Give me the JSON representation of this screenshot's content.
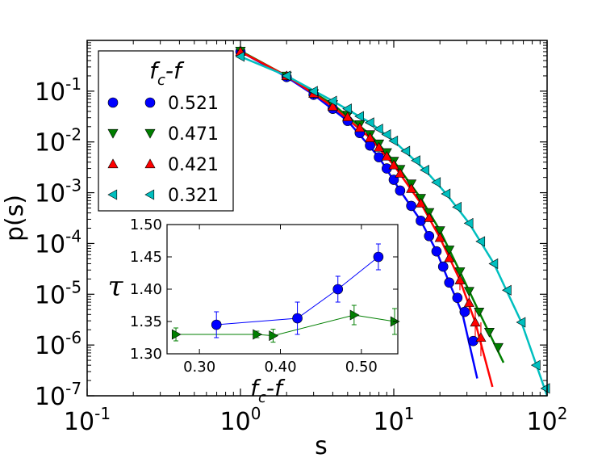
{
  "chart_data": [
    {
      "type": "scatter",
      "role": "main",
      "xlabel": "s",
      "ylabel": "p(s)",
      "xscale": "log",
      "yscale": "log",
      "xlim": [
        0.1,
        100
      ],
      "ylim": [
        1e-07,
        1
      ],
      "x_ticks": [
        {
          "value": 0.1,
          "base": "10",
          "exp": "-1"
        },
        {
          "value": 1,
          "base": "10",
          "exp": "0"
        },
        {
          "value": 10,
          "base": "10",
          "exp": "1"
        },
        {
          "value": 100,
          "base": "10",
          "exp": "2"
        }
      ],
      "y_ticks": [
        {
          "value": 1e-07,
          "base": "10",
          "exp": "-7"
        },
        {
          "value": 1e-06,
          "base": "10",
          "exp": "-6"
        },
        {
          "value": 1e-05,
          "base": "10",
          "exp": "-5"
        },
        {
          "value": 0.0001,
          "base": "10",
          "exp": "-4"
        },
        {
          "value": 0.001,
          "base": "10",
          "exp": "-3"
        },
        {
          "value": 0.01,
          "base": "10",
          "exp": "-2"
        },
        {
          "value": 0.1,
          "base": "10",
          "exp": "-1"
        }
      ],
      "legend": {
        "title_main": "f",
        "title_sub": "c",
        "title_rest": "-f",
        "placement": "top-left"
      },
      "series": [
        {
          "name": "0.521",
          "marker": "circle",
          "color": "#0000ff",
          "points": [
            {
              "s": 1,
              "p": 0.6
            },
            {
              "s": 2,
              "p": 0.19
            },
            {
              "s": 3,
              "p": 0.085
            },
            {
              "s": 4,
              "p": 0.045
            },
            {
              "s": 5,
              "p": 0.026
            },
            {
              "s": 6,
              "p": 0.015
            },
            {
              "s": 7,
              "p": 0.0085
            },
            {
              "s": 8,
              "p": 0.005
            },
            {
              "s": 9,
              "p": 0.003
            },
            {
              "s": 10,
              "p": 0.0018
            },
            {
              "s": 11,
              "p": 0.0011
            },
            {
              "s": 13,
              "p": 0.00055
            },
            {
              "s": 15,
              "p": 0.00028
            },
            {
              "s": 17,
              "p": 0.00014
            },
            {
              "s": 19,
              "p": 7e-05
            },
            {
              "s": 21,
              "p": 3.5e-05
            },
            {
              "s": 23,
              "p": 1.7e-05
            },
            {
              "s": 26,
              "p": 8.5e-06
            },
            {
              "s": 29,
              "p": 4.5e-06
            },
            {
              "s": 33,
              "p": 1.2e-06
            }
          ],
          "fit": [
            {
              "s": 1,
              "p": 0.6
            },
            {
              "s": 2,
              "p": 0.19
            },
            {
              "s": 3,
              "p": 0.085
            },
            {
              "s": 5,
              "p": 0.026
            },
            {
              "s": 8,
              "p": 0.005
            },
            {
              "s": 11,
              "p": 0.0011
            },
            {
              "s": 15,
              "p": 0.00028
            },
            {
              "s": 19,
              "p": 7e-05
            },
            {
              "s": 23,
              "p": 1.7e-05
            },
            {
              "s": 28,
              "p": 4.2e-06
            },
            {
              "s": 35,
              "p": 2.2e-07
            }
          ]
        },
        {
          "name": "0.471",
          "marker": "triangle-down",
          "color": "#007f00",
          "points": [
            {
              "s": 1,
              "p": 0.62
            },
            {
              "s": 2,
              "p": 0.2
            },
            {
              "s": 3,
              "p": 0.09
            },
            {
              "s": 4,
              "p": 0.055
            },
            {
              "s": 5,
              "p": 0.034
            },
            {
              "s": 6,
              "p": 0.022
            },
            {
              "s": 7,
              "p": 0.014
            },
            {
              "s": 8,
              "p": 0.0092
            },
            {
              "s": 9,
              "p": 0.0062
            },
            {
              "s": 10,
              "p": 0.0042
            },
            {
              "s": 11,
              "p": 0.0029
            },
            {
              "s": 13,
              "p": 0.0015
            },
            {
              "s": 15,
              "p": 0.00078
            },
            {
              "s": 17,
              "p": 0.00041
            },
            {
              "s": 20,
              "p": 0.00018
            },
            {
              "s": 23,
              "p": 7.5e-05
            },
            {
              "s": 27,
              "p": 2.8e-05
            },
            {
              "s": 31,
              "p": 1.15e-05
            },
            {
              "s": 36,
              "p": 4.5e-06
            },
            {
              "s": 42,
              "p": 1.8e-06
            },
            {
              "s": 48,
              "p": 9e-07
            }
          ],
          "fit": [
            {
              "s": 1,
              "p": 0.62
            },
            {
              "s": 2,
              "p": 0.2
            },
            {
              "s": 4,
              "p": 0.055
            },
            {
              "s": 7,
              "p": 0.014
            },
            {
              "s": 10,
              "p": 0.0042
            },
            {
              "s": 15,
              "p": 0.00078
            },
            {
              "s": 20,
              "p": 0.00018
            },
            {
              "s": 27,
              "p": 2.8e-05
            },
            {
              "s": 36,
              "p": 4.5e-06
            },
            {
              "s": 52,
              "p": 4.5e-07
            }
          ]
        },
        {
          "name": "0.421",
          "marker": "triangle-up",
          "color": "#ff0000",
          "points": [
            {
              "s": 1,
              "p": 0.6
            },
            {
              "s": 2,
              "p": 0.2
            },
            {
              "s": 3,
              "p": 0.09
            },
            {
              "s": 4,
              "p": 0.05
            },
            {
              "s": 5,
              "p": 0.031
            },
            {
              "s": 6,
              "p": 0.019
            },
            {
              "s": 7,
              "p": 0.012
            },
            {
              "s": 8,
              "p": 0.0078
            },
            {
              "s": 9,
              "p": 0.0052
            },
            {
              "s": 10,
              "p": 0.0035
            },
            {
              "s": 11,
              "p": 0.0024
            },
            {
              "s": 13,
              "p": 0.0012
            },
            {
              "s": 15,
              "p": 0.00062
            },
            {
              "s": 17,
              "p": 0.00032
            },
            {
              "s": 20,
              "p": 0.00013
            },
            {
              "s": 23,
              "p": 5.2e-05
            },
            {
              "s": 27,
              "p": 1.9e-05
            },
            {
              "s": 31,
              "p": 6.8e-06
            },
            {
              "s": 34,
              "p": 2.8e-06
            },
            {
              "s": 37,
              "p": 1.4e-06
            }
          ],
          "errorbars": [
            {
              "s": 27,
              "lo": 1.2e-05,
              "hi": 2.8e-05
            },
            {
              "s": 31,
              "lo": 4e-06,
              "hi": 1.1e-05
            },
            {
              "s": 34,
              "lo": 1.3e-06,
              "hi": 5.5e-06
            },
            {
              "s": 37,
              "lo": 6e-07,
              "hi": 2.8e-06
            }
          ],
          "fit": [
            {
              "s": 1,
              "p": 0.6
            },
            {
              "s": 2,
              "p": 0.2
            },
            {
              "s": 4,
              "p": 0.05
            },
            {
              "s": 7,
              "p": 0.012
            },
            {
              "s": 10,
              "p": 0.0035
            },
            {
              "s": 15,
              "p": 0.00062
            },
            {
              "s": 20,
              "p": 0.00013
            },
            {
              "s": 27,
              "p": 1.9e-05
            },
            {
              "s": 34,
              "p": 2.8e-06
            },
            {
              "s": 44,
              "p": 1.5e-07
            }
          ]
        },
        {
          "name": "0.321",
          "marker": "triangle-left",
          "color": "#00bfbf",
          "points": [
            {
              "s": 1,
              "p": 0.48
            },
            {
              "s": 2,
              "p": 0.2
            },
            {
              "s": 3,
              "p": 0.1
            },
            {
              "s": 4,
              "p": 0.064
            },
            {
              "s": 5,
              "p": 0.045
            },
            {
              "s": 6,
              "p": 0.032
            },
            {
              "s": 7,
              "p": 0.024
            },
            {
              "s": 8,
              "p": 0.018
            },
            {
              "s": 9,
              "p": 0.014
            },
            {
              "s": 10,
              "p": 0.0105
            },
            {
              "s": 12,
              "p": 0.0066
            },
            {
              "s": 14,
              "p": 0.0043
            },
            {
              "s": 16,
              "p": 0.0028
            },
            {
              "s": 19,
              "p": 0.0016
            },
            {
              "s": 22,
              "p": 0.00095
            },
            {
              "s": 26,
              "p": 0.00052
            },
            {
              "s": 31,
              "p": 0.00025
            },
            {
              "s": 37,
              "p": 0.00011
            },
            {
              "s": 45,
              "p": 4e-05
            },
            {
              "s": 55,
              "p": 1.2e-05
            },
            {
              "s": 68,
              "p": 2.8e-06
            },
            {
              "s": 85,
              "p": 4e-07
            },
            {
              "s": 98,
              "p": 1.4e-07
            }
          ],
          "fit": [
            {
              "s": 1,
              "p": 0.48
            },
            {
              "s": 2,
              "p": 0.2
            },
            {
              "s": 4,
              "p": 0.064
            },
            {
              "s": 7,
              "p": 0.024
            },
            {
              "s": 10,
              "p": 0.0105
            },
            {
              "s": 16,
              "p": 0.0028
            },
            {
              "s": 22,
              "p": 0.00095
            },
            {
              "s": 31,
              "p": 0.00025
            },
            {
              "s": 45,
              "p": 4e-05
            },
            {
              "s": 68,
              "p": 2.8e-06
            },
            {
              "s": 100,
              "p": 1e-07
            }
          ]
        }
      ]
    },
    {
      "type": "line",
      "role": "inset",
      "xlabel_main": "f",
      "xlabel_sub": "c",
      "xlabel_rest": "-f",
      "ylabel": "τ",
      "xlim": [
        0.26,
        0.545
      ],
      "ylim": [
        1.3,
        1.5
      ],
      "x_ticks": [
        "0.30",
        "0.40",
        "0.50"
      ],
      "x_tick_values": [
        0.3,
        0.4,
        0.5
      ],
      "y_ticks": [
        "1.30",
        "1.35",
        "1.40",
        "1.45",
        "1.50"
      ],
      "y_tick_values": [
        1.3,
        1.35,
        1.4,
        1.45,
        1.5
      ],
      "series": [
        {
          "name": "blue",
          "marker": "circle",
          "color": "#0000ff",
          "points": [
            {
              "x": 0.321,
              "y": 1.345,
              "err": 0.02
            },
            {
              "x": 0.421,
              "y": 1.355,
              "err": 0.025
            },
            {
              "x": 0.471,
              "y": 1.4,
              "err": 0.02
            },
            {
              "x": 0.521,
              "y": 1.45,
              "err": 0.02
            }
          ]
        },
        {
          "name": "green",
          "marker": "triangle-right",
          "color": "#007f00",
          "points": [
            {
              "x": 0.271,
              "y": 1.33,
              "err": 0.01
            },
            {
              "x": 0.371,
              "y": 1.33,
              "err": 0.005
            },
            {
              "x": 0.391,
              "y": 1.328,
              "err": 0.01
            },
            {
              "x": 0.491,
              "y": 1.36,
              "err": 0.015
            },
            {
              "x": 0.541,
              "y": 1.35,
              "err": 0.02
            }
          ]
        }
      ]
    }
  ]
}
